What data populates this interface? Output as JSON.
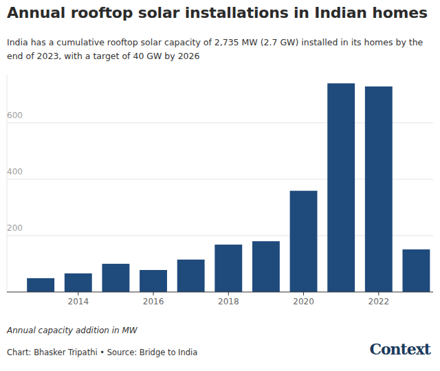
{
  "chart_data": {
    "type": "bar",
    "title": "Annual rooftop solar installations in Indian homes",
    "subtitle": "India has a cumulative rooftop solar capacity of 2,735 MW (2.7 GW) installed in its homes by the end of 2023, with a target of 40 GW by 2026",
    "y_label": "Annual capacity addition in MW",
    "source": "Chart: Bhasker Tripathi • Source: Bridge to India",
    "logo": "Context",
    "x": [
      2013,
      2014,
      2015,
      2016,
      2017,
      2018,
      2019,
      2020,
      2021,
      2022,
      2023
    ],
    "values": [
      49,
      66,
      100,
      78,
      115,
      168,
      180,
      359,
      740,
      729,
      151
    ],
    "color": "#1f4a7c",
    "xlim": [
      2012.1,
      2023.45
    ],
    "xticks": [
      2014,
      2016,
      2018,
      2020,
      2022
    ],
    "ylim": [
      0,
      770
    ],
    "yticks": [
      200,
      400,
      600
    ],
    "grid": true
  }
}
